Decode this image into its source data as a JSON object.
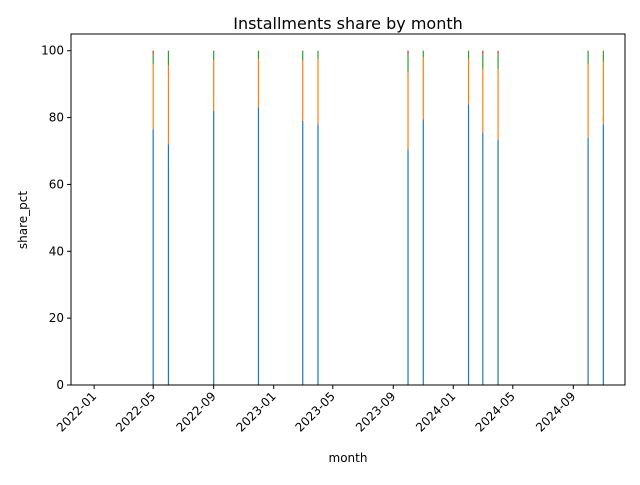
{
  "chart_data": {
    "type": "bar",
    "stacked": true,
    "title": "Installments share by month",
    "xlabel": "month",
    "ylabel": "share_pct",
    "ylim": [
      0,
      105
    ],
    "xlim": [
      "2021-11-15",
      "2024-12-15"
    ],
    "yticks": [
      0,
      20,
      40,
      60,
      80,
      100
    ],
    "xticks": [
      "2022-01",
      "2022-05",
      "2022-09",
      "2023-01",
      "2023-05",
      "2023-09",
      "2024-01",
      "2024-05",
      "2024-09"
    ],
    "grid": false,
    "legend": "none",
    "x": [
      "2022-05-01",
      "2022-06-01",
      "2022-09-01",
      "2022-12-01",
      "2023-03-01",
      "2023-04-01",
      "2023-10-01",
      "2023-11-01",
      "2024-02-01",
      "2024-03-01",
      "2024-04-01",
      "2024-10-01",
      "2024-11-01"
    ],
    "series": [
      {
        "color": "#1f77b4",
        "values": [
          76.5,
          72,
          82,
          83,
          79,
          78,
          70.5,
          79.5,
          84,
          75.5,
          73.5,
          74,
          78
        ]
      },
      {
        "color": "#ff7f0e",
        "values": [
          19.5,
          23.5,
          15,
          14.5,
          18,
          19.5,
          23,
          18.5,
          13.5,
          19,
          21,
          22,
          18.5
        ]
      },
      {
        "color": "#2ca02c",
        "values": [
          3,
          4.5,
          3,
          2.5,
          3,
          2.5,
          5.5,
          2,
          2.5,
          4.5,
          4.5,
          4,
          3.5
        ]
      },
      {
        "color": "#d62728",
        "values": [
          1,
          0,
          0,
          0,
          0,
          0,
          1,
          0,
          0,
          1,
          1,
          0,
          0
        ]
      }
    ]
  }
}
